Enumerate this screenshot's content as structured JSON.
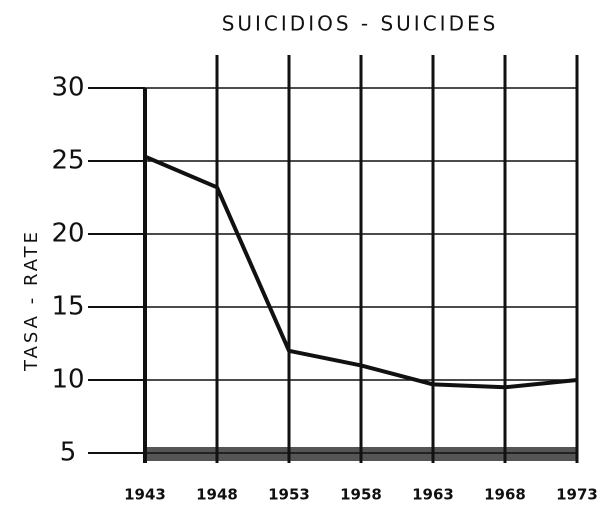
{
  "chart_data": {
    "type": "line",
    "title": "SUICIDIOS - SUICIDES",
    "y_label": "TASA - RATE",
    "categories": [
      "1943",
      "1948",
      "1953",
      "1958",
      "1963",
      "1968",
      "1973"
    ],
    "series": [
      {
        "name": "Suicidios",
        "color": "#111111",
        "values": [
          25.3,
          23.2,
          12,
          11,
          9.7,
          9.5,
          10
        ]
      }
    ],
    "ylim": [
      5,
      30
    ],
    "yticks": [
      5,
      10,
      15,
      20,
      25,
      30
    ],
    "grid": true
  }
}
